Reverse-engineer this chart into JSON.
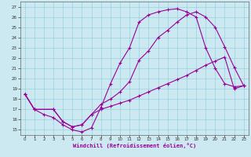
{
  "xlabel": "Windchill (Refroidissement éolien,°C)",
  "bg_color": "#cce8f0",
  "line_color": "#990099",
  "xlim_min": -0.5,
  "xlim_max": 23.5,
  "ylim_min": 14.5,
  "ylim_max": 27.5,
  "xticks": [
    0,
    1,
    2,
    3,
    4,
    5,
    6,
    7,
    8,
    9,
    10,
    11,
    12,
    13,
    14,
    15,
    16,
    17,
    18,
    19,
    20,
    21,
    22,
    23
  ],
  "yticks": [
    15,
    16,
    17,
    18,
    19,
    20,
    21,
    22,
    23,
    24,
    25,
    26,
    27
  ],
  "line1_x": [
    0,
    1,
    2,
    3,
    4,
    5,
    6,
    7,
    8,
    9,
    10,
    11,
    12,
    13,
    14,
    15,
    16,
    17,
    18,
    19,
    20,
    21,
    22,
    23
  ],
  "line1_y": [
    18.5,
    17.0,
    16.5,
    16.2,
    15.5,
    15.0,
    14.8,
    15.2,
    17.2,
    19.5,
    21.5,
    23.0,
    25.5,
    26.2,
    26.5,
    26.7,
    26.8,
    26.5,
    26.0,
    23.0,
    21.0,
    19.5,
    19.2,
    19.3
  ],
  "line2_x": [
    0,
    1,
    3,
    4,
    5,
    6,
    7,
    8,
    9,
    10,
    11,
    12,
    13,
    14,
    15,
    16,
    17,
    18,
    19,
    20,
    21,
    22,
    23
  ],
  "line2_y": [
    18.5,
    17.0,
    17.0,
    15.8,
    15.3,
    15.5,
    16.5,
    17.5,
    18.0,
    18.7,
    19.7,
    21.8,
    22.7,
    24.0,
    24.7,
    25.5,
    26.2,
    26.5,
    26.0,
    25.0,
    23.1,
    21.1,
    19.3
  ],
  "line3_x": [
    0,
    1,
    3,
    4,
    5,
    6,
    7,
    8,
    9,
    10,
    11,
    12,
    13,
    14,
    15,
    16,
    17,
    18,
    19,
    20,
    21,
    22,
    23
  ],
  "line3_y": [
    18.5,
    17.0,
    17.0,
    15.8,
    15.3,
    15.5,
    16.5,
    17.0,
    17.3,
    17.6,
    17.9,
    18.3,
    18.7,
    19.1,
    19.5,
    19.9,
    20.3,
    20.8,
    21.3,
    21.7,
    22.1,
    19.0,
    19.3
  ]
}
